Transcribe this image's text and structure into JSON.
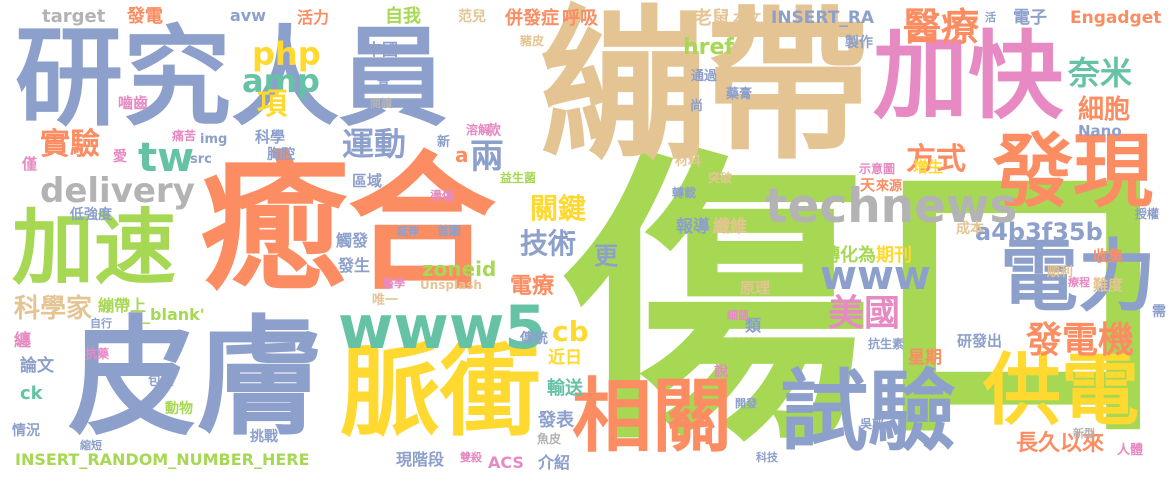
{
  "palette": {
    "orange": "#fc8d62",
    "blue": "#8da0cb",
    "pink": "#e78ac3",
    "green": "#a6d854",
    "yellow": "#ffd92f",
    "tan": "#e5c494",
    "gray": "#b3b3b3",
    "teal": "#66c2a5"
  },
  "words": [
    {
      "text": "傷口",
      "color": "#a6d854"
    },
    {
      "text": "癒合",
      "color": "#fc8d62"
    },
    {
      "text": "繃帶",
      "color": "#e5c494"
    },
    {
      "text": "皮膚",
      "color": "#8da0cb"
    },
    {
      "text": "研究人員",
      "color": "#8da0cb"
    },
    {
      "text": "加快",
      "color": "#e78ac3"
    },
    {
      "text": "脈衝",
      "color": "#ffd92f"
    },
    {
      "text": "試驗",
      "color": "#8da0cb"
    },
    {
      "text": "相關",
      "color": "#fc8d62"
    },
    {
      "text": "供電",
      "color": "#ffd92f"
    },
    {
      "text": "發現",
      "color": "#fc8d62"
    },
    {
      "text": "電力",
      "color": "#8da0cb"
    },
    {
      "text": "加速",
      "color": "#a6d854"
    },
    {
      "text": "www5",
      "color": "#66c2a5"
    },
    {
      "text": "technews",
      "color": "#b3b3b3"
    },
    {
      "text": "delivery",
      "color": "#b3b3b3"
    },
    {
      "text": "醫療",
      "color": "#fc8d62"
    },
    {
      "text": "www",
      "color": "#8da0cb"
    },
    {
      "text": "美國",
      "color": "#e78ac3"
    },
    {
      "text": "發電機",
      "color": "#fc8d62"
    },
    {
      "text": "php",
      "color": "#ffd92f"
    },
    {
      "text": "amp",
      "color": "#66c2a5"
    },
    {
      "text": "項",
      "color": "#ffd92f"
    },
    {
      "text": "tw",
      "color": "#66c2a5"
    },
    {
      "text": "運動",
      "color": "#8da0cb"
    },
    {
      "text": "實驗",
      "color": "#fc8d62"
    },
    {
      "text": "兩",
      "color": "#8da0cb"
    },
    {
      "text": "方式",
      "color": "#fc8d62"
    },
    {
      "text": "奈米",
      "color": "#66c2a5"
    },
    {
      "text": "細胞",
      "color": "#fc8d62"
    },
    {
      "text": "技術",
      "color": "#8da0cb"
    },
    {
      "text": "關鍵",
      "color": "#ffd92f"
    },
    {
      "text": "a4b3f35b",
      "color": "#8da0cb"
    },
    {
      "text": "cb",
      "color": "#ffd92f"
    },
    {
      "text": "科學家",
      "color": "#e5c494"
    },
    {
      "text": "電療",
      "color": "#fc8d62"
    },
    {
      "text": "更",
      "color": "#8da0cb"
    },
    {
      "text": "期刊",
      "color": "#ffd92f"
    },
    {
      "text": "轉化為",
      "color": "#a6d854"
    },
    {
      "text": "zoneid",
      "color": "#a6d854"
    },
    {
      "text": "Unsplash",
      "color": "#e5c494"
    },
    {
      "text": "長久以來",
      "color": "#fc8d62"
    },
    {
      "text": "報導",
      "color": "#8da0cb"
    },
    {
      "text": "纖維",
      "color": "#e5c494"
    },
    {
      "text": "發表",
      "color": "#8da0cb"
    },
    {
      "text": "輸送",
      "color": "#66c2a5"
    },
    {
      "text": "近日",
      "color": "#ffd92f"
    },
    {
      "text": "詳細",
      "color": "#a6d854"
    },
    {
      "text": "研發出",
      "color": "#8da0cb"
    },
    {
      "text": "星期",
      "color": "#fc8d62"
    },
    {
      "text": "INSERT_RANDOM_NUMBER_HERE",
      "color": "#a6d854"
    },
    {
      "text": "現階段",
      "color": "#8da0cb"
    },
    {
      "text": "ACS",
      "color": "#e78ac3"
    },
    {
      "text": "介紹",
      "color": "#8da0cb"
    },
    {
      "text": "挑戰",
      "color": "#8da0cb"
    },
    {
      "text": "情況",
      "color": "#8da0cb"
    },
    {
      "text": "ck",
      "color": "#66c2a5"
    },
    {
      "text": "論文",
      "color": "#8da0cb"
    },
    {
      "text": "纏",
      "color": "#e78ac3"
    },
    {
      "text": "target",
      "color": "#b3b3b3"
    },
    {
      "text": "發電",
      "color": "#fc8d62"
    },
    {
      "text": "avw",
      "color": "#8da0cb"
    },
    {
      "text": "活力",
      "color": "#fc8d62"
    },
    {
      "text": "自我",
      "color": "#a6d854"
    },
    {
      "text": "范兒",
      "color": "#e5c494"
    },
    {
      "text": "併發症",
      "color": "#fc8d62"
    },
    {
      "text": "呼吸",
      "color": "#fc8d62"
    },
    {
      "text": "老鼠",
      "color": "#e5c494"
    },
    {
      "text": "本文",
      "color": "#e5c494"
    },
    {
      "text": "INSERT_RA",
      "color": "#8da0cb"
    },
    {
      "text": "電子",
      "color": "#8da0cb"
    },
    {
      "text": "Engadget",
      "color": "#fc8d62"
    },
    {
      "text": "href",
      "color": "#a6d854"
    },
    {
      "text": "中國",
      "color": "#8da0cb"
    },
    {
      "text": "n",
      "color": "#8da0cb"
    },
    {
      "text": "a",
      "color": "#fc8d62"
    },
    {
      "text": "_blank'",
      "color": "#a6d854"
    },
    {
      "text": "科學",
      "color": "#8da0cb"
    },
    {
      "text": "胸腔",
      "color": "#8da0cb"
    },
    {
      "text": "區域",
      "color": "#8da0cb"
    },
    {
      "text": "唯一",
      "color": "#e5c494"
    },
    {
      "text": "增生",
      "color": "#ffd92f"
    },
    {
      "text": "示意圖",
      "color": "#e78ac3"
    },
    {
      "text": "收集",
      "color": "#fc8d62"
    },
    {
      "text": "難度",
      "color": "#e5c494"
    },
    {
      "text": "成本",
      "color": "#e5c494"
    },
    {
      "text": "原理",
      "color": "#e5c494"
    },
    {
      "text": "類",
      "color": "#8da0cb"
    },
    {
      "text": "僅",
      "color": "#e78ac3"
    },
    {
      "text": "愛",
      "color": "#e78ac3"
    },
    {
      "text": "src",
      "color": "#8da0cb"
    },
    {
      "text": "img",
      "color": "#8da0cb"
    },
    {
      "text": "低強度",
      "color": "#8da0cb"
    },
    {
      "text": "觸發",
      "color": "#8da0cb"
    },
    {
      "text": "發生",
      "color": "#8da0cb"
    },
    {
      "text": "繃帶上",
      "color": "#a6d854"
    },
    {
      "text": "傳統",
      "color": "#8da0cb"
    },
    {
      "text": "包紮",
      "color": "#8da0cb"
    },
    {
      "text": "動物",
      "color": "#a6d854"
    },
    {
      "text": "嚙齒",
      "color": "#e78ac3"
    },
    {
      "text": "款",
      "color": "#e78ac3"
    },
    {
      "text": "材料",
      "color": "#e5c494"
    },
    {
      "text": "天",
      "color": "#fc8d62"
    },
    {
      "text": "來源",
      "color": "#fc8d62"
    },
    {
      "text": "轉載",
      "color": "#8da0cb"
    },
    {
      "text": "突破",
      "color": "#e5c494"
    },
    {
      "text": "順利",
      "color": "#e5c494"
    },
    {
      "text": "需",
      "color": "#8da0cb"
    },
    {
      "text": "說",
      "color": "#e78ac3"
    },
    {
      "text": "Nano",
      "color": "#8da0cb"
    },
    {
      "text": "藥膏",
      "color": "#8da0cb"
    },
    {
      "text": "豬皮",
      "color": "#e5c494"
    },
    {
      "text": "製作",
      "color": "#8da0cb"
    },
    {
      "text": "通過",
      "color": "#8da0cb"
    },
    {
      "text": "尚",
      "color": "#8da0cb"
    },
    {
      "text": "高",
      "color": "#8da0cb"
    },
    {
      "text": "閱讀",
      "color": "#b3b3b3"
    },
    {
      "text": "溶解",
      "color": "#e78ac3"
    },
    {
      "text": "新",
      "color": "#8da0cb"
    },
    {
      "text": "痛苦",
      "color": "#e78ac3"
    },
    {
      "text": "益生菌",
      "color": "#a6d854"
    },
    {
      "text": "燙傷",
      "color": "#e78ac3"
    },
    {
      "text": "首圖",
      "color": "#8da0cb"
    },
    {
      "text": "延伸",
      "color": "#8da0cb"
    },
    {
      "text": "醫學",
      "color": "#e78ac3"
    },
    {
      "text": "自行",
      "color": "#8da0cb"
    },
    {
      "text": "抗藥",
      "color": "#e78ac3"
    },
    {
      "text": "抗生素",
      "color": "#8da0cb"
    },
    {
      "text": "細菌",
      "color": "#e78ac3"
    },
    {
      "text": "開發",
      "color": "#8da0cb"
    },
    {
      "text": "吳郭",
      "color": "#8da0cb"
    },
    {
      "text": "魚皮",
      "color": "#b3b3b3"
    },
    {
      "text": "縮短",
      "color": "#8da0cb"
    },
    {
      "text": "雙殺",
      "color": "#e78ac3"
    },
    {
      "text": "科技",
      "color": "#8da0cb"
    },
    {
      "text": "新型",
      "color": "#b3b3b3"
    },
    {
      "text": "人體",
      "color": "#e78ac3"
    },
    {
      "text": "授權",
      "color": "#8da0cb"
    },
    {
      "text": "療程",
      "color": "#e78ac3"
    },
    {
      "text": "活",
      "color": "#8da0cb"
    }
  ]
}
